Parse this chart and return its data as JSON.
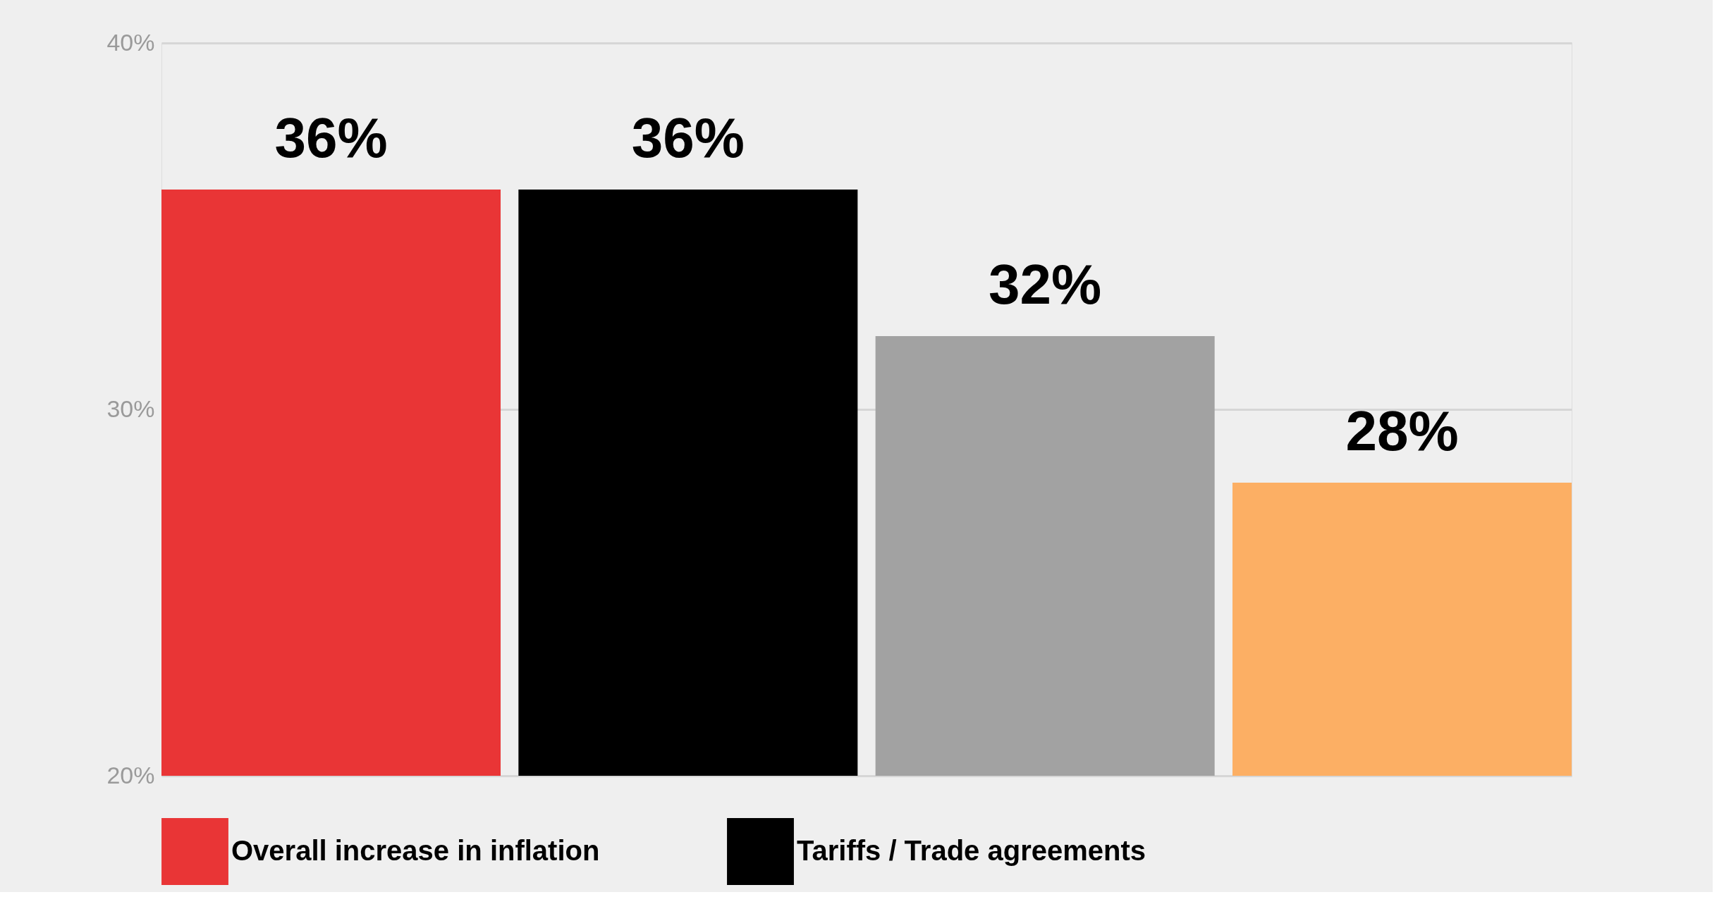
{
  "chart_data": {
    "type": "bar",
    "categories": [
      null,
      null,
      null,
      null
    ],
    "series": [
      {
        "name": "Overall increase in inflation",
        "color": "#e93536",
        "values": [
          36,
          null,
          null,
          null
        ],
        "value_labels": [
          "36%",
          null,
          null,
          null
        ]
      },
      {
        "name": "Tariffs / Trade agreements",
        "color": "#000000",
        "values": [
          null,
          36,
          null,
          null
        ],
        "value_labels": [
          null,
          "36%",
          null,
          null
        ]
      },
      {
        "color": "#a2a2a2",
        "values": [
          null,
          null,
          32,
          null
        ],
        "value_labels": [
          null,
          null,
          "32%",
          null
        ]
      },
      {
        "color": "#fcaf64",
        "values": [
          null,
          null,
          null,
          28
        ],
        "value_labels": [
          null,
          null,
          null,
          "28%"
        ]
      }
    ],
    "ylim": [
      20,
      40
    ],
    "yticks": [
      {
        "value": 20,
        "label": "20%"
      },
      {
        "value": 30,
        "label": "30%"
      },
      {
        "value": 40,
        "label": "40%"
      }
    ],
    "grid": "y",
    "legend": "bottom"
  }
}
